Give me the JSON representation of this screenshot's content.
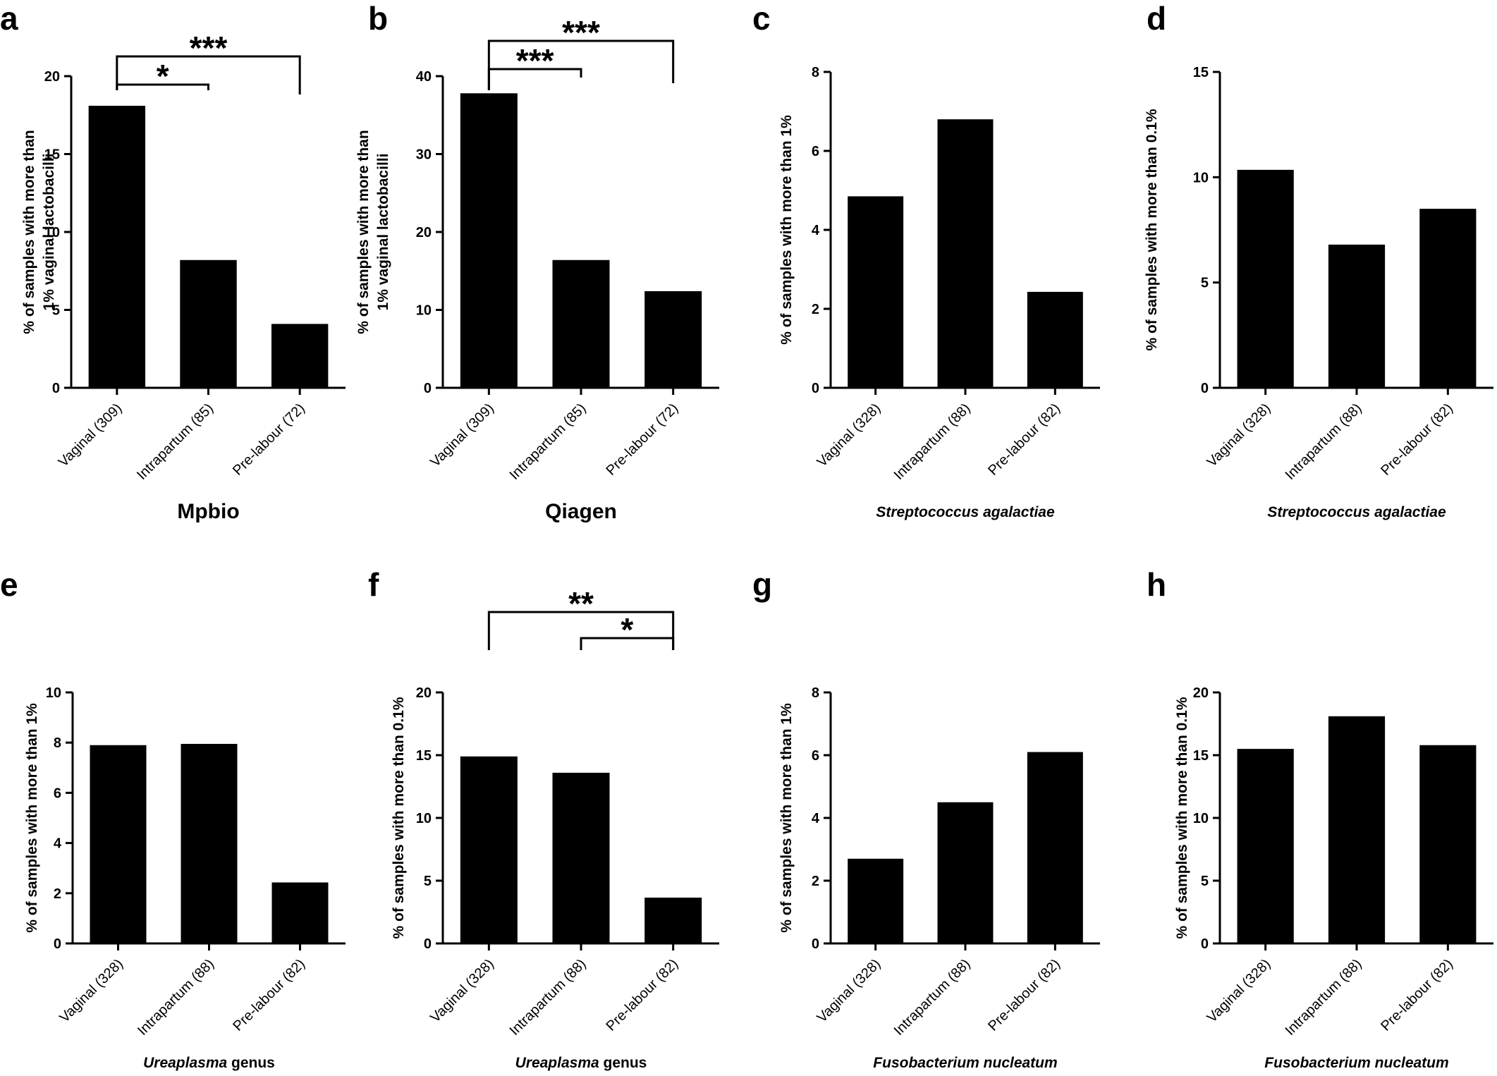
{
  "figure": {
    "background": "#ffffff",
    "bar_color": "#000000"
  },
  "chart_data": [
    {
      "panel": "a",
      "type": "bar",
      "categories": [
        "Vaginal (309)",
        "Intrapartum (85)",
        "Pre-labour (72)"
      ],
      "values": [
        18.1,
        8.2,
        4.1
      ],
      "ylim": [
        0,
        20
      ],
      "yticks": [
        0,
        5,
        10,
        15,
        20
      ],
      "ylabel": [
        "% of samples with more than",
        "1% vaginal lactobacilli"
      ],
      "title": "Mpbio",
      "title_style": "plain",
      "significance": [
        {
          "from": 0,
          "to": 2,
          "label": "***"
        },
        {
          "from": 0,
          "to": 1,
          "label": "*"
        }
      ]
    },
    {
      "panel": "b",
      "type": "bar",
      "categories": [
        "Vaginal (309)",
        "Intrapartum (85)",
        "Pre-labour (72)"
      ],
      "values": [
        37.8,
        16.4,
        12.4
      ],
      "ylim": [
        0,
        40
      ],
      "yticks": [
        0,
        10,
        20,
        30,
        40
      ],
      "ylabel": [
        "% of samples with more than",
        "1% vaginal lactobacilli"
      ],
      "title": "Qiagen",
      "title_style": "plain",
      "significance": [
        {
          "from": 0,
          "to": 2,
          "label": "***"
        },
        {
          "from": 0,
          "to": 1,
          "label": "***"
        }
      ]
    },
    {
      "panel": "c",
      "type": "bar",
      "categories": [
        "Vaginal (328)",
        "Intrapartum (88)",
        "Pre-labour (82)"
      ],
      "values": [
        4.85,
        6.8,
        2.43
      ],
      "ylim": [
        0,
        8
      ],
      "yticks": [
        0,
        2,
        4,
        6,
        8
      ],
      "ylabel": [
        "% of samples with more than 1%"
      ],
      "title": "Streptococcus agalactiae",
      "title_style": "italic",
      "significance": []
    },
    {
      "panel": "d",
      "type": "bar",
      "categories": [
        "Vaginal (328)",
        "Intrapartum (88)",
        "Pre-labour (82)"
      ],
      "values": [
        10.35,
        6.8,
        8.5
      ],
      "ylim": [
        0,
        15
      ],
      "yticks": [
        0,
        5,
        10,
        15
      ],
      "ylabel": [
        "% of samples with more than 0.1%"
      ],
      "title": "Streptococcus agalactiae",
      "title_style": "italic",
      "significance": []
    },
    {
      "panel": "e",
      "type": "bar",
      "categories": [
        "Vaginal (328)",
        "Intrapartum (88)",
        "Pre-labour (82)"
      ],
      "values": [
        7.9,
        7.95,
        2.43
      ],
      "ylim": [
        0,
        10
      ],
      "yticks": [
        0,
        2,
        4,
        6,
        8,
        10
      ],
      "ylabel": [
        "% of samples with more than 1%"
      ],
      "title": "Ureaplasma genus",
      "title_style": "genus",
      "significance": []
    },
    {
      "panel": "f",
      "type": "bar",
      "categories": [
        "Vaginal (328)",
        "Intrapartum (88)",
        "Pre-labour (82)"
      ],
      "values": [
        14.9,
        13.6,
        3.65
      ],
      "ylim": [
        0,
        20
      ],
      "yticks": [
        0,
        5,
        10,
        15,
        20
      ],
      "ylabel": [
        "% of samples with more than 0.1%"
      ],
      "title": "Ureaplasma genus",
      "title_style": "genus",
      "significance": [
        {
          "from": 0,
          "to": 2,
          "label": "**"
        },
        {
          "from": 1,
          "to": 2,
          "label": "*"
        }
      ]
    },
    {
      "panel": "g",
      "type": "bar",
      "categories": [
        "Vaginal (328)",
        "Intrapartum (88)",
        "Pre-labour (82)"
      ],
      "values": [
        2.7,
        4.5,
        6.1
      ],
      "ylim": [
        0,
        8
      ],
      "yticks": [
        0,
        2,
        4,
        6,
        8
      ],
      "ylabel": [
        "% of samples with more than 1%"
      ],
      "title": "Fusobacterium nucleatum",
      "title_style": "italic",
      "significance": []
    },
    {
      "panel": "h",
      "type": "bar",
      "categories": [
        "Vaginal (328)",
        "Intrapartum (88)",
        "Pre-labour (82)"
      ],
      "values": [
        15.5,
        18.1,
        15.8
      ],
      "ylim": [
        0,
        20
      ],
      "yticks": [
        0,
        5,
        10,
        15,
        20
      ],
      "ylabel": [
        "% of samples with more than 0.1%"
      ],
      "title": "Fusobacterium nucleatum",
      "title_style": "italic",
      "significance": []
    }
  ]
}
